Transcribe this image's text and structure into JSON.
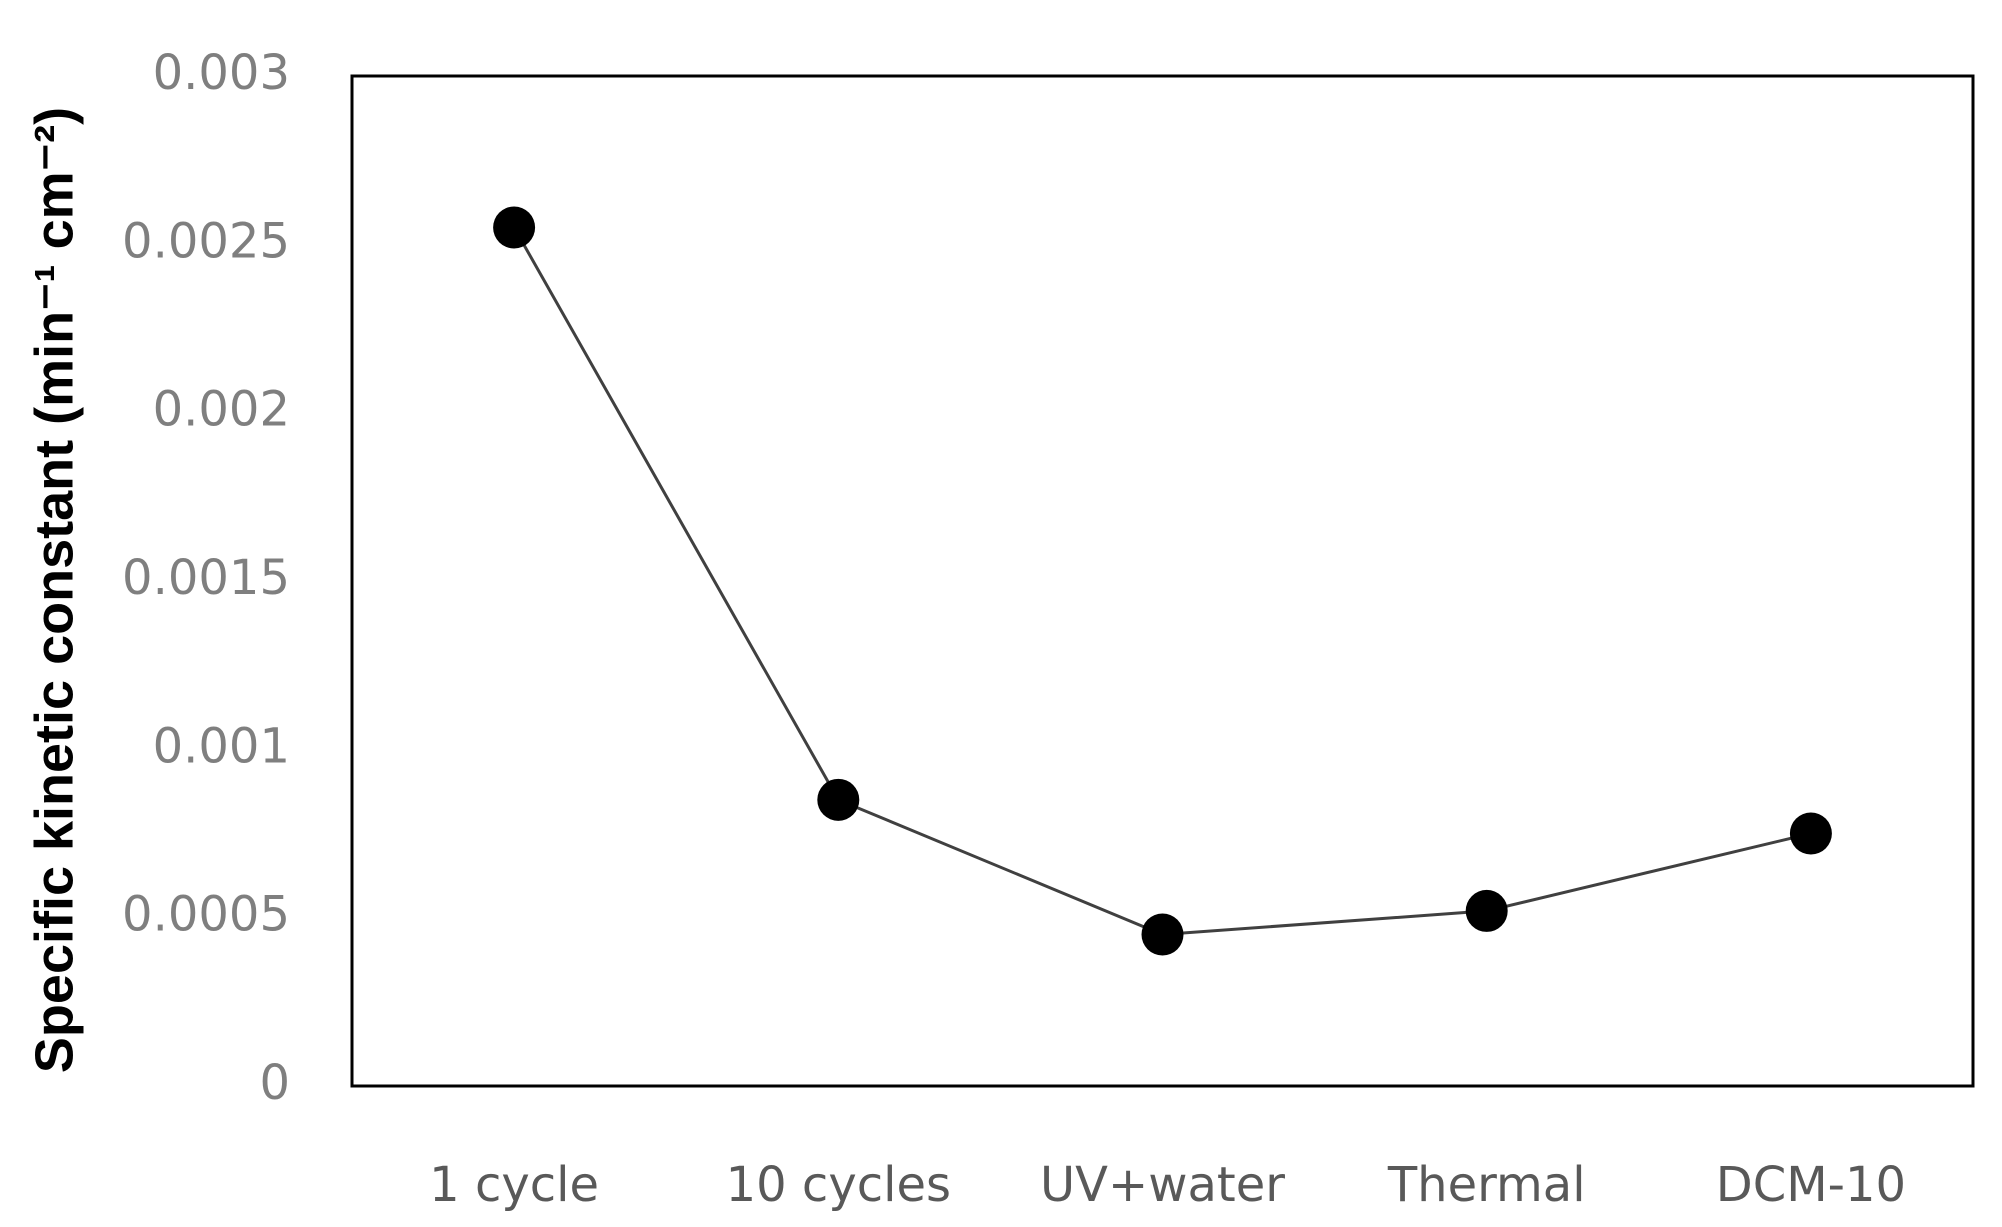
{
  "chart_data": {
    "type": "line",
    "y_label": "Specific kinetic constant (min⁻¹ cm⁻²)",
    "categories": [
      "1 cycle",
      "10 cycles",
      "UV+water",
      "Thermal",
      "DCM-10"
    ],
    "values": [
      0.00255,
      0.00085,
      0.00045,
      0.00052,
      0.00075
    ],
    "color": "#000000",
    "ylim": [
      0,
      0.003
    ],
    "yticks": [
      0,
      0.0005,
      0.001,
      0.0015,
      0.002,
      0.0025,
      0.003
    ],
    "grid": false
  }
}
